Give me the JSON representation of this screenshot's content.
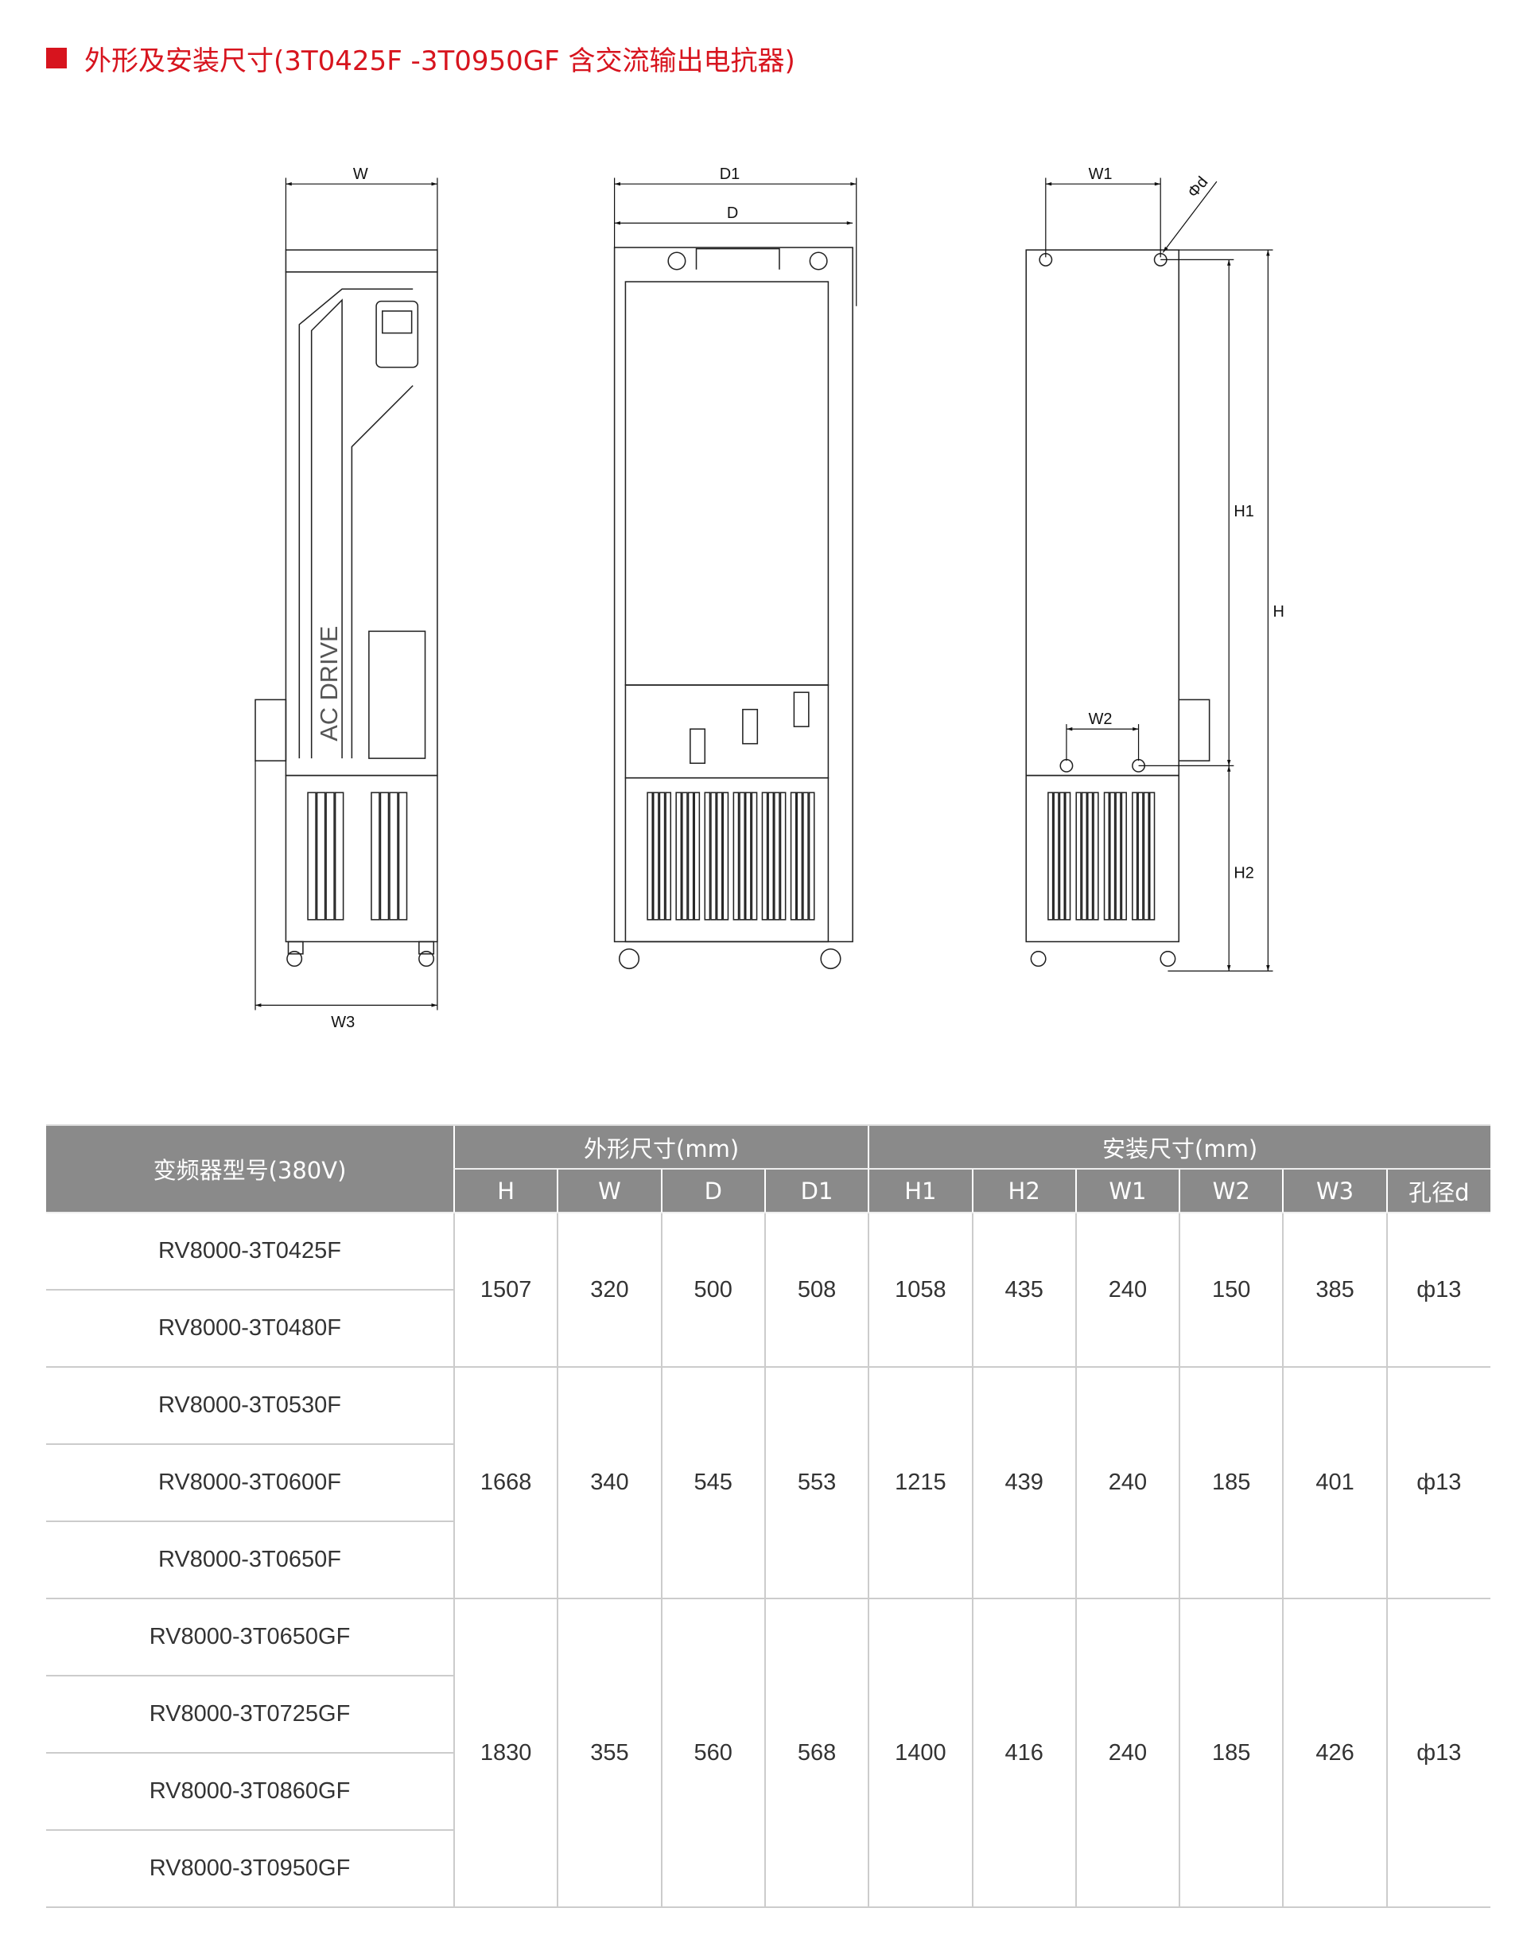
{
  "title": "外形及安装尺寸(3T0425F -3T0950GF 含交流输出电抗器)",
  "colors": {
    "accent": "#d7141e",
    "header_bg": "#8a8a8a"
  },
  "drawing": {
    "front_label": "AC DRIVE",
    "dims": {
      "W": "W",
      "W3": "W3",
      "D1": "D1",
      "D": "D",
      "W1": "W1",
      "d": "Φd",
      "H1": "H1",
      "H": "H",
      "W2": "W2",
      "H2": "H2"
    }
  },
  "table": {
    "model_header": "变频器型号(380V)",
    "group_outer": "外形尺寸(mm)",
    "group_install": "安装尺寸(mm)",
    "columns": [
      "H",
      "W",
      "D",
      "D1",
      "H1",
      "H2",
      "W1",
      "W2",
      "W3",
      "孔径d"
    ],
    "groups": [
      {
        "models": [
          "RV8000-3T0425F",
          "RV8000-3T0480F"
        ],
        "values": [
          "1507",
          "320",
          "500",
          "508",
          "1058",
          "435",
          "240",
          "150",
          "385",
          "ф13"
        ]
      },
      {
        "models": [
          "RV8000-3T0530F",
          "RV8000-3T0600F",
          "RV8000-3T0650F"
        ],
        "values": [
          "1668",
          "340",
          "545",
          "553",
          "1215",
          "439",
          "240",
          "185",
          "401",
          "ф13"
        ]
      },
      {
        "models": [
          "RV8000-3T0650GF",
          "RV8000-3T0725GF",
          "RV8000-3T0860GF",
          "RV8000-3T0950GF"
        ],
        "values": [
          "1830",
          "355",
          "560",
          "568",
          "1400",
          "416",
          "240",
          "185",
          "426",
          "ф13"
        ]
      }
    ]
  }
}
